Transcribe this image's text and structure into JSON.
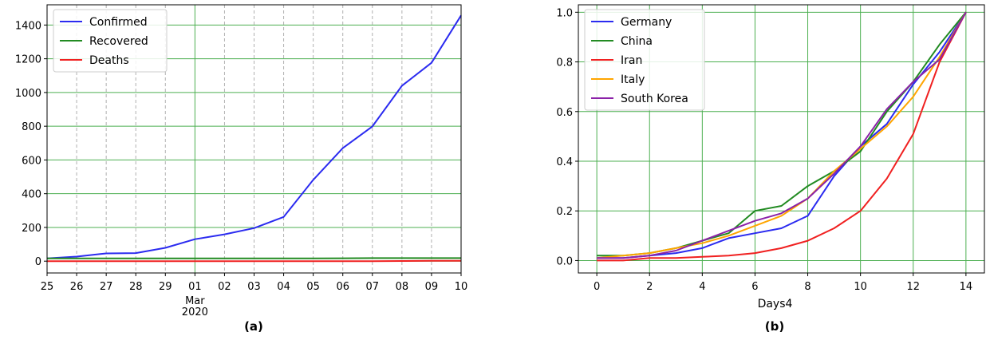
{
  "chart_data": [
    {
      "type": "line",
      "caption": "(a)",
      "x": [
        "25",
        "26",
        "27",
        "28",
        "29",
        "01",
        "02",
        "03",
        "04",
        "05",
        "06",
        "07",
        "08",
        "09",
        "10"
      ],
      "x_sublabels": [
        "Mar",
        "2020"
      ],
      "ylim": [
        -70,
        1520
      ],
      "yticks": [
        0,
        200,
        400,
        600,
        800,
        1000,
        1200,
        1400
      ],
      "grid": true,
      "legend": "top-left",
      "series": [
        {
          "name": "Confirmed",
          "color": "#2b2bf0",
          "values": [
            16,
            27,
            46,
            48,
            79,
            130,
            159,
            196,
            262,
            482,
            670,
            799,
            1040,
            1176,
            1457
          ]
        },
        {
          "name": "Recovered",
          "color": "#228b22",
          "values": [
            16,
            16,
            16,
            16,
            16,
            16,
            16,
            16,
            16,
            16,
            17,
            18,
            18,
            18,
            18
          ]
        },
        {
          "name": "Deaths",
          "color": "#f02020",
          "values": [
            0,
            0,
            0,
            0,
            0,
            0,
            0,
            0,
            0,
            0,
            0,
            0,
            1,
            2,
            2
          ]
        }
      ]
    },
    {
      "type": "line",
      "caption": "(b)",
      "xlabel": "Days4",
      "x": [
        0,
        1,
        2,
        3,
        4,
        5,
        6,
        7,
        8,
        9,
        10,
        11,
        12,
        13,
        14
      ],
      "xlim": [
        -0.7,
        14.7
      ],
      "xticks": [
        0,
        2,
        4,
        6,
        8,
        10,
        12,
        14
      ],
      "ylim": [
        -0.05,
        1.03
      ],
      "yticks": [
        0.0,
        0.2,
        0.4,
        0.6,
        0.8,
        1.0
      ],
      "ytick_labels": [
        "0.0",
        "0.2",
        "0.4",
        "0.6",
        "0.8",
        "1.0"
      ],
      "grid": true,
      "legend": "top-left",
      "series": [
        {
          "name": "Germany",
          "color": "#2b2bf0",
          "values": [
            0.01,
            0.01,
            0.02,
            0.03,
            0.05,
            0.09,
            0.11,
            0.13,
            0.18,
            0.34,
            0.46,
            0.55,
            0.71,
            0.84,
            1.0
          ]
        },
        {
          "name": "China",
          "color": "#228b22",
          "values": [
            0.02,
            0.02,
            0.03,
            0.05,
            0.08,
            0.11,
            0.2,
            0.22,
            0.3,
            0.36,
            0.44,
            0.6,
            0.72,
            0.87,
            1.0
          ]
        },
        {
          "name": "Iran",
          "color": "#f02020",
          "values": [
            0.0,
            0.0,
            0.01,
            0.01,
            0.015,
            0.02,
            0.03,
            0.05,
            0.08,
            0.13,
            0.2,
            0.33,
            0.51,
            0.8,
            1.0
          ]
        },
        {
          "name": "Italy",
          "color": "#ffa500",
          "values": [
            0.01,
            0.02,
            0.03,
            0.05,
            0.07,
            0.1,
            0.14,
            0.18,
            0.25,
            0.36,
            0.45,
            0.54,
            0.66,
            0.82,
            1.0
          ]
        },
        {
          "name": "South Korea",
          "color": "#8b22a8",
          "values": [
            0.01,
            0.01,
            0.02,
            0.04,
            0.08,
            0.12,
            0.16,
            0.19,
            0.25,
            0.35,
            0.46,
            0.61,
            0.72,
            0.81,
            1.0
          ]
        }
      ]
    }
  ]
}
